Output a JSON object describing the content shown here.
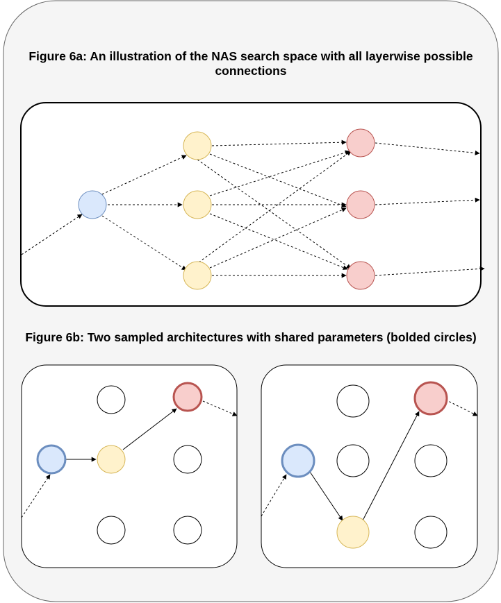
{
  "figure_a": {
    "title_line1": "Figure 6a: An illustration of the NAS search space with all layerwise possible",
    "title_line2": "connections"
  },
  "figure_b": {
    "title": "Figure 6b: Two sampled architectures with shared parameters (bolded circles)"
  },
  "colors": {
    "outer_background": "#f5f5f5",
    "input_node_fill": "#dae8fc",
    "input_node_stroke": "#6c8ebf",
    "hidden_node_fill": "#fff2cc",
    "hidden_node_stroke": "#d6b656",
    "output_node_fill": "#f8cecc",
    "output_node_stroke": "#b85450",
    "empty_node_fill": "#ffffff",
    "empty_node_stroke": "#000000"
  }
}
